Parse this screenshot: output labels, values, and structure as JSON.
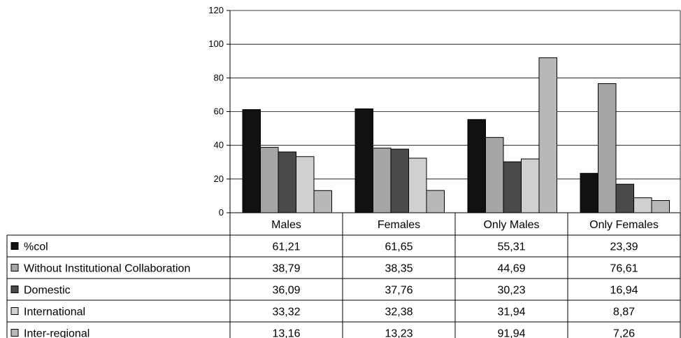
{
  "chart_data": {
    "type": "bar",
    "title": "",
    "xlabel": "",
    "ylabel": "",
    "ylim": [
      0,
      120
    ],
    "yticks": [
      0,
      20,
      40,
      60,
      80,
      100,
      120
    ],
    "grid": true,
    "legend_placement": "left (data table legend keys)",
    "categories": [
      "Males",
      "Females",
      "Only Males",
      "Only Females"
    ],
    "series": [
      {
        "name": "%col",
        "color": "#111111",
        "values": [
          61.21,
          61.65,
          55.31,
          23.39
        ],
        "labels": [
          "61,21",
          "61,65",
          "55,31",
          "23,39"
        ]
      },
      {
        "name": "Without Institutional Collaboration",
        "color": "#a6a6a6",
        "values": [
          38.79,
          38.35,
          44.69,
          76.61
        ],
        "labels": [
          "38,79",
          "38,35",
          "44,69",
          "76,61"
        ]
      },
      {
        "name": "Domestic",
        "color": "#4a4a4a",
        "values": [
          36.09,
          37.76,
          30.23,
          16.94
        ],
        "labels": [
          "36,09",
          "37,76",
          "30,23",
          "16,94"
        ]
      },
      {
        "name": "International",
        "color": "#d0d0d0",
        "values": [
          33.32,
          32.38,
          31.94,
          8.87
        ],
        "labels": [
          "33,32",
          "32,38",
          "31,94",
          "8,87"
        ]
      },
      {
        "name": "Inter-regional",
        "color": "#b8b8b8",
        "values": [
          13.16,
          13.23,
          91.94,
          7.26
        ],
        "labels": [
          "13,16",
          "13,23",
          "91,94",
          "7,26"
        ]
      }
    ]
  }
}
